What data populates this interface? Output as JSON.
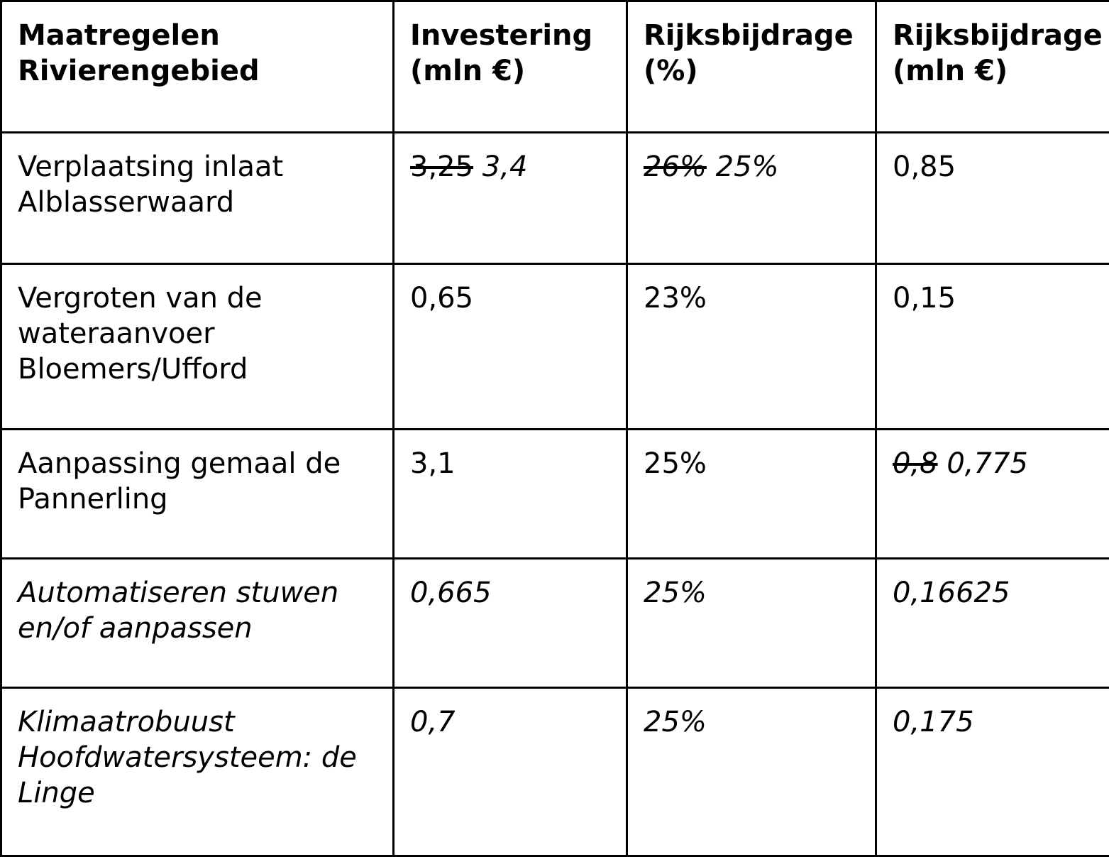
{
  "colors": {
    "border": "#000000",
    "text": "#000000",
    "background": "#ffffff"
  },
  "table": {
    "columns": [
      {
        "label": "Maatregelen Rivierengebied"
      },
      {
        "label": "Investering (mln €)"
      },
      {
        "label": "Rijksbijdrage (%)"
      },
      {
        "label": "Rijksbijdrage (mln €)"
      }
    ],
    "rows": [
      {
        "cells": [
          {
            "segments": [
              {
                "text": "Verplaatsing inlaat Alblasserwaard"
              }
            ]
          },
          {
            "segments": [
              {
                "text": "3,25",
                "strike": true
              },
              {
                "text": "3,4",
                "italic": true
              }
            ]
          },
          {
            "segments": [
              {
                "text": "26%",
                "strike": true,
                "italic": true
              },
              {
                "text": "25%",
                "italic": true
              }
            ]
          },
          {
            "segments": [
              {
                "text": "0,85"
              }
            ]
          }
        ]
      },
      {
        "cells": [
          {
            "segments": [
              {
                "text": "Vergroten van de wateraanvoer Bloemers/Ufford"
              }
            ]
          },
          {
            "segments": [
              {
                "text": "0,65"
              }
            ]
          },
          {
            "segments": [
              {
                "text": "23%"
              }
            ]
          },
          {
            "segments": [
              {
                "text": "0,15"
              }
            ]
          }
        ]
      },
      {
        "cells": [
          {
            "segments": [
              {
                "text": "Aanpassing gemaal de Pannerling"
              }
            ]
          },
          {
            "segments": [
              {
                "text": "3,1"
              }
            ]
          },
          {
            "segments": [
              {
                "text": "25%"
              }
            ]
          },
          {
            "segments": [
              {
                "text": "0,8",
                "strike": true,
                "italic": true
              },
              {
                "text": "0,775",
                "italic": true
              }
            ]
          }
        ]
      },
      {
        "cells": [
          {
            "segments": [
              {
                "text": "Automatiseren stuwen en/of aanpassen",
                "italic": true
              }
            ]
          },
          {
            "segments": [
              {
                "text": "0,665",
                "italic": true
              }
            ]
          },
          {
            "segments": [
              {
                "text": "25%",
                "italic": true
              }
            ]
          },
          {
            "segments": [
              {
                "text": "0,16625",
                "italic": true
              }
            ]
          }
        ]
      },
      {
        "cells": [
          {
            "segments": [
              {
                "text": "Klimaatrobuust Hoofdwatersysteem: de Linge",
                "italic": true
              }
            ]
          },
          {
            "segments": [
              {
                "text": "0,7",
                "italic": true
              }
            ]
          },
          {
            "segments": [
              {
                "text": "25%",
                "italic": true
              }
            ]
          },
          {
            "segments": [
              {
                "text": "0,175",
                "italic": true
              }
            ]
          }
        ]
      }
    ]
  }
}
